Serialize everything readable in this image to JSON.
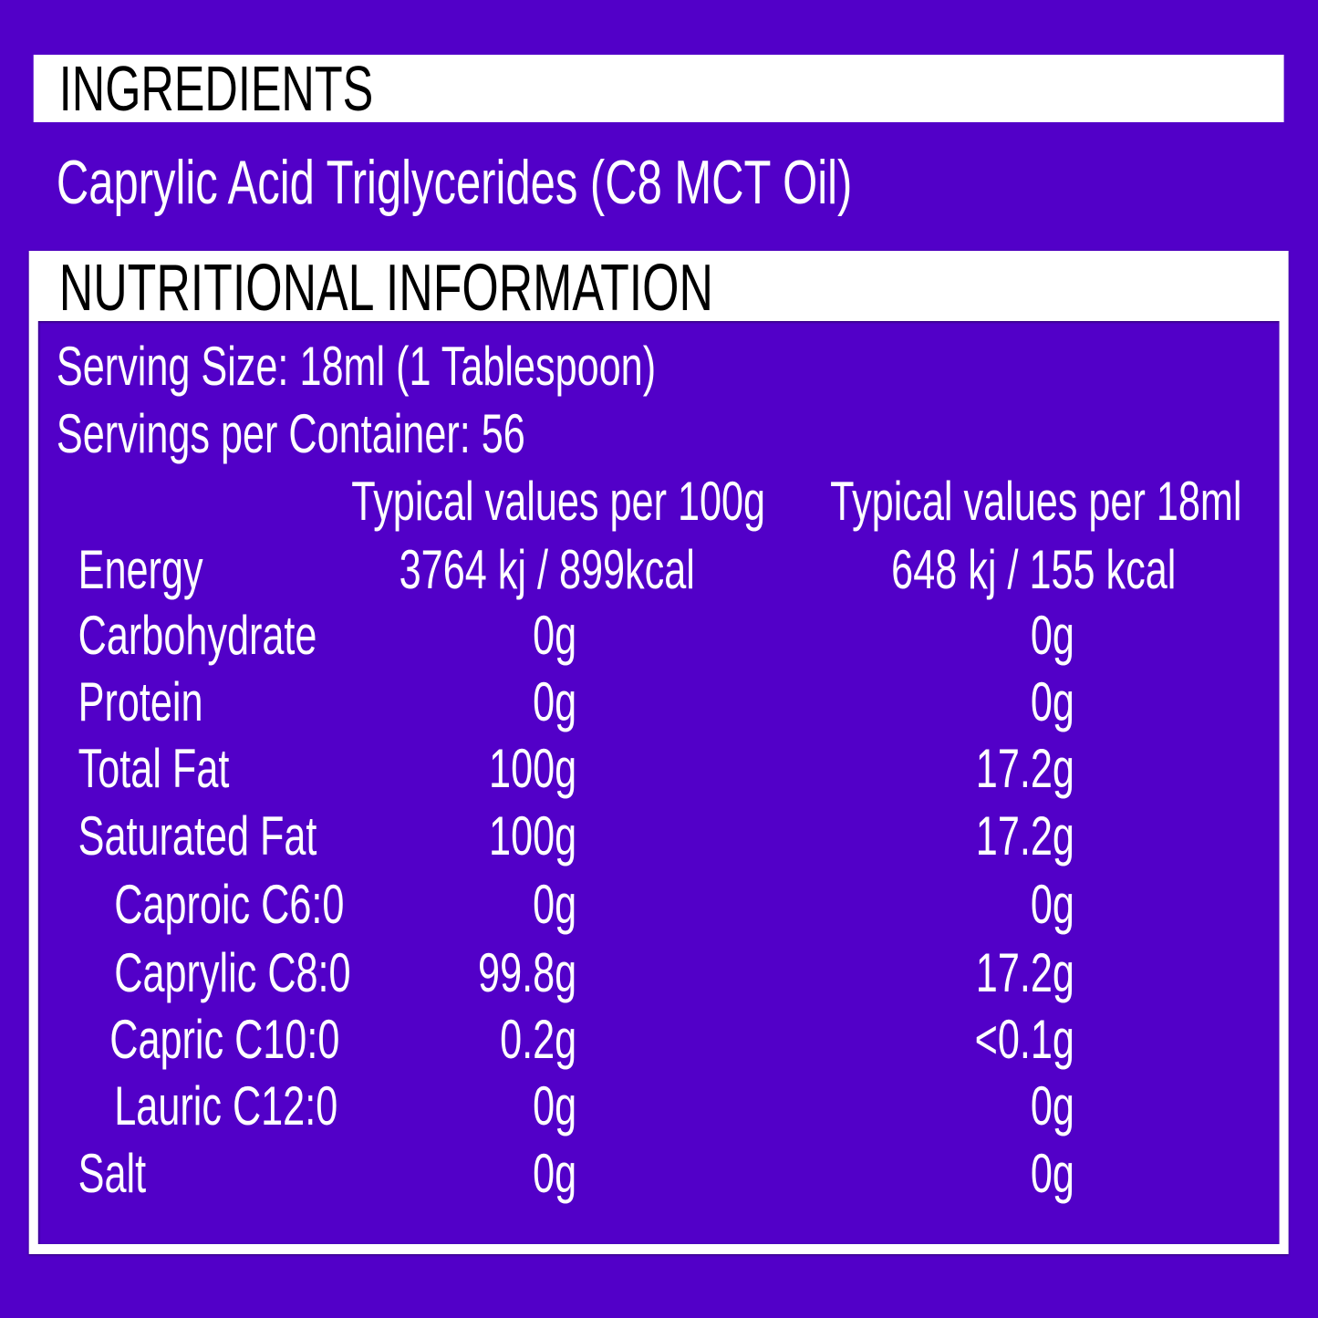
{
  "ingredients": {
    "heading": "INGREDIENTS",
    "text": "Caprylic Acid Triglycerides (C8 MCT Oil)"
  },
  "nutrition": {
    "heading": "NUTRITIONAL INFORMATION",
    "serving_size": "Serving Size: 18ml (1 Tablespoon)",
    "servings_per_container": "Servings per Container: 56",
    "columns": [
      "Typical values per 100g",
      "Typical values per 18ml"
    ],
    "rows": [
      {
        "label": "Energy",
        "per_100g": "3764 kj / 899kcal",
        "per_serving": "648 kj / 155 kcal",
        "indent": false
      },
      {
        "label": "Carbohydrate",
        "per_100g": "0g",
        "per_serving": "0g",
        "indent": false
      },
      {
        "label": "Protein",
        "per_100g": "0g",
        "per_serving": "0g",
        "indent": false
      },
      {
        "label": "Total Fat",
        "per_100g": "100g",
        "per_serving": "17.2g",
        "indent": false
      },
      {
        "label": "Saturated Fat",
        "per_100g": "100g",
        "per_serving": "17.2g",
        "indent": false
      },
      {
        "label": "Caproic C6:0",
        "per_100g": "0g",
        "per_serving": "0g",
        "indent": true
      },
      {
        "label": "Caprylic C8:0",
        "per_100g": "99.8g",
        "per_serving": "17.2g",
        "indent": true
      },
      {
        "label": "Capric C10:0",
        "per_100g": "0.2g",
        "per_serving": "<0.1g",
        "indent": true
      },
      {
        "label": "Lauric C12:0",
        "per_100g": "0g",
        "per_serving": "0g",
        "indent": true
      },
      {
        "label": "Salt",
        "per_100g": "0g",
        "per_serving": "0g",
        "indent": false
      }
    ]
  },
  "colors": {
    "background": "#5200c8",
    "panel": "#ffffff",
    "text": "#ffffff",
    "heading_text": "#000000"
  }
}
